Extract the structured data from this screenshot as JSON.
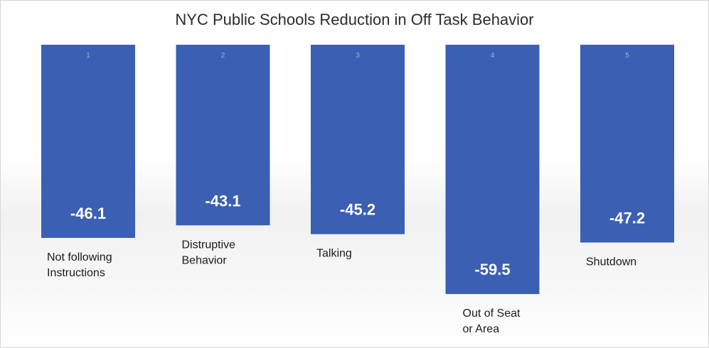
{
  "chart_data": {
    "type": "bar",
    "title": "NYC Public Schools Reduction in Off Task Behavior",
    "xlabel": "",
    "ylabel": "",
    "categories": [
      [
        "Not following",
        "Instructions"
      ],
      [
        "Distruptive",
        "Behavior"
      ],
      [
        "Talking"
      ],
      [
        "Out of Seat",
        "or Area"
      ],
      [
        "Shutdown"
      ]
    ],
    "indices": [
      "1",
      "2",
      "3",
      "4",
      "5"
    ],
    "values": [
      -46.1,
      -43.1,
      -45.2,
      -59.5,
      -47.2
    ],
    "value_labels": [
      "-46.1",
      "-43.1",
      "-45.2",
      "-59.5",
      "-47.2"
    ],
    "bar_color": "#3a5fb3",
    "legend": "none",
    "grid": false
  }
}
